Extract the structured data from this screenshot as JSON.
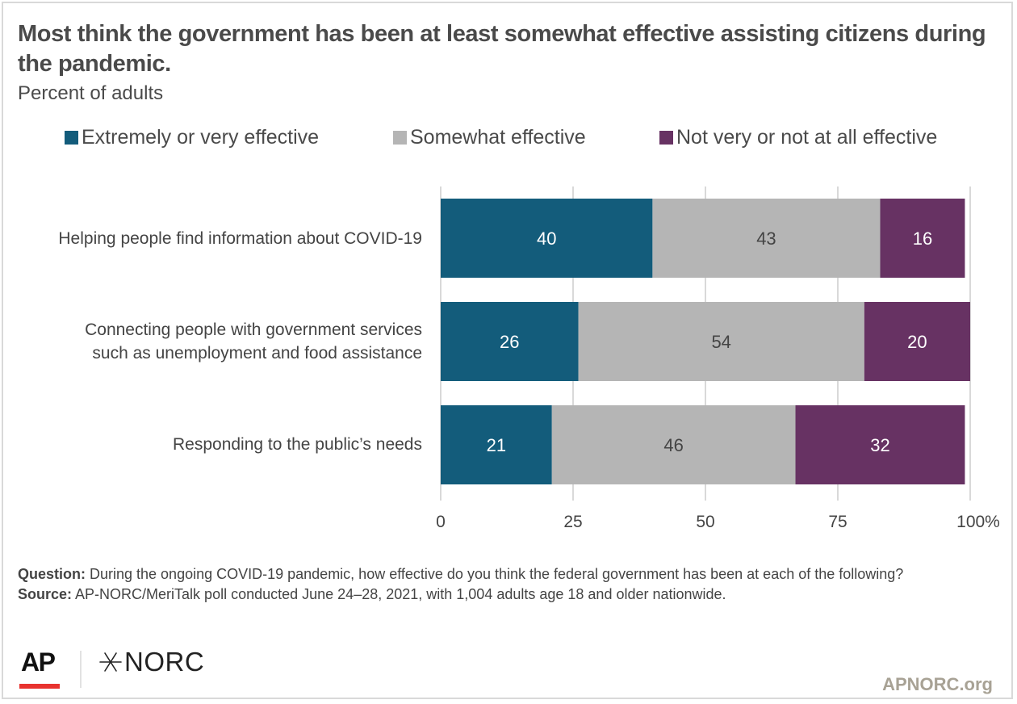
{
  "header": {
    "title": "Most think the government has been at least somewhat effective assisting citizens during the pandemic.",
    "subtitle": "Percent of adults"
  },
  "chart_data": {
    "type": "bar",
    "orientation": "horizontal",
    "stacked": true,
    "title": "Most think the government has been at least somewhat effective assisting citizens during the pandemic.",
    "subtitle": "Percent of adults",
    "xlabel": "",
    "ylabel": "",
    "xlim": [
      0,
      100
    ],
    "x_ticks": [
      0,
      25,
      50,
      75,
      100
    ],
    "x_tick_labels": [
      "0",
      "25",
      "50",
      "75",
      "100%"
    ],
    "grid": true,
    "legend_position": "top",
    "categories": [
      "Helping people find information about COVID-19",
      "Connecting people with government services such as unemployment and food assistance",
      "Responding to the public’s needs"
    ],
    "category_label_lines": [
      [
        "Helping people find information about COVID-19"
      ],
      [
        "Connecting people with government services",
        "such as unemployment and food assistance"
      ],
      [
        "Responding to the public’s needs"
      ]
    ],
    "series": [
      {
        "name": "Extremely or very effective",
        "color": "#135c7b",
        "label_color": "#ffffff",
        "values": [
          40,
          26,
          21
        ]
      },
      {
        "name": "Somewhat effective",
        "color": "#b5b5b5",
        "label_color": "#444444",
        "values": [
          43,
          54,
          46
        ]
      },
      {
        "name": "Not very or not at all effective",
        "color": "#673263",
        "label_color": "#ffffff",
        "values": [
          16,
          20,
          32
        ]
      }
    ]
  },
  "footer": {
    "question_label": "Question:",
    "question_text": " During the ongoing COVID-19 pandemic, how effective do you think the federal government has been at each of the following?",
    "source_label": "Source:",
    "source_text": " AP-NORC/MeriTalk poll conducted June 24–28, 2021, with 1,004 adults age 18 and older nationwide."
  },
  "branding": {
    "ap_logo_text": "AP",
    "ap_accent_color": "#e8332f",
    "norc_logo_text": "NORC",
    "site_text": "APNORC.org"
  }
}
